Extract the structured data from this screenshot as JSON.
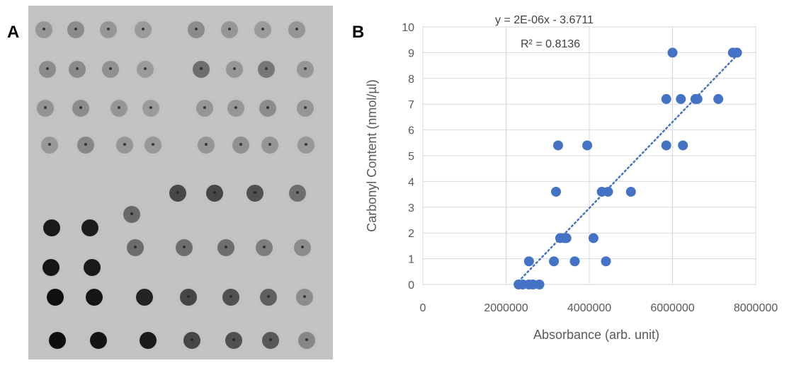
{
  "panel_a": {
    "label": "A"
  },
  "panel_b": {
    "label": "B"
  },
  "colors": {
    "marker": "#4472C4",
    "trend": "#4472C4",
    "grid": "#D9D9D9",
    "blot_bg": "#C4C4C4"
  },
  "chart_data": {
    "type": "scatter",
    "xlabel": "Absorbance (arb. unit)",
    "ylabel": "Carbonyl Content (nmol/µl)",
    "xlim": [
      0,
      8000000
    ],
    "ylim": [
      0,
      10
    ],
    "x_ticks": [
      0,
      2000000,
      4000000,
      6000000,
      8000000
    ],
    "x_tick_labels": [
      "0",
      "2000000",
      "4000000",
      "6000000",
      "8000000"
    ],
    "y_ticks": [
      0,
      1,
      2,
      3,
      4,
      5,
      6,
      7,
      8,
      9,
      10
    ],
    "y_tick_labels": [
      "0",
      "1",
      "2",
      "3",
      "4",
      "5",
      "6",
      "7",
      "8",
      "9",
      "10"
    ],
    "grid": true,
    "trendline": {
      "type": "linear",
      "style": "dotted",
      "x": [
        2300000,
        7550000
      ]
    },
    "equation_text": "y = 2E-06x - 3.6711",
    "r2_text": "R² = 0.8136",
    "points": [
      {
        "x": 2300000,
        "y": 0
      },
      {
        "x": 2400000,
        "y": 0
      },
      {
        "x": 2550000,
        "y": 0
      },
      {
        "x": 2650000,
        "y": 0
      },
      {
        "x": 2800000,
        "y": 0
      },
      {
        "x": 2550000,
        "y": 0.9
      },
      {
        "x": 3150000,
        "y": 0.9
      },
      {
        "x": 3650000,
        "y": 0.9
      },
      {
        "x": 4400000,
        "y": 0.9
      },
      {
        "x": 3300000,
        "y": 1.8
      },
      {
        "x": 3400000,
        "y": 1.8
      },
      {
        "x": 3450000,
        "y": 1.8
      },
      {
        "x": 4100000,
        "y": 1.8
      },
      {
        "x": 3200000,
        "y": 3.6
      },
      {
        "x": 4300000,
        "y": 3.6
      },
      {
        "x": 4450000,
        "y": 3.6
      },
      {
        "x": 5000000,
        "y": 3.6
      },
      {
        "x": 3250000,
        "y": 5.4
      },
      {
        "x": 3950000,
        "y": 5.4
      },
      {
        "x": 5850000,
        "y": 5.4
      },
      {
        "x": 6250000,
        "y": 5.4
      },
      {
        "x": 5850000,
        "y": 7.2
      },
      {
        "x": 6200000,
        "y": 7.2
      },
      {
        "x": 6550000,
        "y": 7.2
      },
      {
        "x": 6600000,
        "y": 7.2
      },
      {
        "x": 7100000,
        "y": 7.2
      },
      {
        "x": 6000000,
        "y": 9
      },
      {
        "x": 7450000,
        "y": 9
      },
      {
        "x": 7550000,
        "y": 9
      }
    ]
  }
}
